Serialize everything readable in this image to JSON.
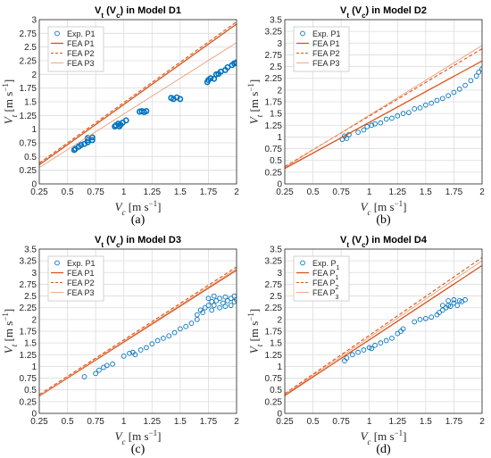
{
  "colors": {
    "marker": "#0072BD",
    "fea_p1": "#D95319",
    "fea_p2": "#D95319",
    "fea_p3": "#EDA07A",
    "grid": "#dcdcdc",
    "axis": "#262626"
  },
  "chart_data": [
    {
      "id": "a",
      "panel_label": "(a)",
      "type": "scatter",
      "title_parts": [
        "V",
        "t",
        " (V",
        "c",
        ") in Model D1"
      ],
      "xlabel_parts": [
        "V",
        "c",
        " [m s",
        "−1",
        "]"
      ],
      "ylabel_parts": [
        "V",
        "t",
        " [m s",
        "−1",
        "]"
      ],
      "xlim": [
        0.25,
        2
      ],
      "ylim": [
        0,
        3
      ],
      "xticks": [
        "0.25",
        "0.5",
        "0.75",
        "1",
        "1.25",
        "1.5",
        "1.75",
        "2"
      ],
      "yticks": [
        "0",
        "0.25",
        "0.5",
        "0.75",
        "1",
        "1.25",
        "1.5",
        "1.75",
        "2",
        "2.25",
        "2.5",
        "2.75",
        "3"
      ],
      "grid": true,
      "legend_position": "top-left",
      "legend": [
        {
          "label_parts": [
            "Exp. P1"
          ],
          "kind": "marker"
        },
        {
          "label_parts": [
            "FEA P1"
          ],
          "kind": "solid"
        },
        {
          "label_parts": [
            "FEA P2"
          ],
          "kind": "dashed"
        },
        {
          "label_parts": [
            "FEA P3"
          ],
          "kind": "thin"
        }
      ],
      "marker_style": "thick",
      "series": [
        {
          "name": "Exp. P1",
          "kind": "scatter",
          "x": [
            0.56,
            0.57,
            0.6,
            0.62,
            0.65,
            0.68,
            0.68,
            0.68,
            0.72,
            0.72,
            0.92,
            0.93,
            0.95,
            0.96,
            0.97,
            0.99,
            1.02,
            1.14,
            1.16,
            1.18,
            1.2,
            1.42,
            1.44,
            1.47,
            1.5,
            1.74,
            1.75,
            1.77,
            1.8,
            1.82,
            1.84,
            1.86,
            1.9,
            1.92,
            1.96,
            1.98,
            2.0
          ],
          "y": [
            0.62,
            0.64,
            0.68,
            0.71,
            0.73,
            0.76,
            0.8,
            0.84,
            0.8,
            0.85,
            1.05,
            1.07,
            1.1,
            1.05,
            1.08,
            1.12,
            1.16,
            1.32,
            1.33,
            1.31,
            1.33,
            1.57,
            1.55,
            1.58,
            1.55,
            1.86,
            1.9,
            1.93,
            1.92,
            2.0,
            2.01,
            2.05,
            2.08,
            2.13,
            2.17,
            2.2,
            2.22
          ]
        },
        {
          "name": "FEA P1",
          "kind": "solid",
          "x": [
            0.25,
            2
          ],
          "y": [
            0.35,
            2.92
          ]
        },
        {
          "name": "FEA P2",
          "kind": "dashed",
          "x": [
            0.25,
            2
          ],
          "y": [
            0.38,
            2.96
          ]
        },
        {
          "name": "FEA P3",
          "kind": "thin",
          "x": [
            0.25,
            2
          ],
          "y": [
            0.3,
            2.58
          ]
        }
      ]
    },
    {
      "id": "b",
      "panel_label": "(b)",
      "type": "scatter",
      "title_parts": [
        "V",
        "t",
        " (V",
        "c",
        ") in Model D2"
      ],
      "xlabel_parts": [
        "V",
        "c",
        " [m s",
        "−1",
        "]"
      ],
      "ylabel_parts": [
        "V",
        "t",
        " [m s",
        "−1",
        "]"
      ],
      "xlim": [
        0.25,
        2
      ],
      "ylim": [
        0,
        3.5
      ],
      "xticks": [
        "0.25",
        "0.5",
        "0.75",
        "1",
        "1.25",
        "1.5",
        "1.75",
        "2"
      ],
      "yticks": [
        "0",
        "0.25",
        "0.5",
        "0.75",
        "1",
        "1.25",
        "1.5",
        "1.75",
        "2",
        "2.25",
        "2.5",
        "2.75",
        "3",
        "3.25",
        "3.5"
      ],
      "grid": true,
      "legend_position": "top-left",
      "legend": [
        {
          "label_parts": [
            "Exp. P1"
          ],
          "kind": "marker"
        },
        {
          "label_parts": [
            "FEA P1"
          ],
          "kind": "solid"
        },
        {
          "label_parts": [
            "FEA P2"
          ],
          "kind": "dashed"
        },
        {
          "label_parts": [
            "FEA P3"
          ],
          "kind": "thin"
        }
      ],
      "marker_style": "thin",
      "series": [
        {
          "name": "Exp. P1",
          "kind": "scatter",
          "x": [
            0.76,
            0.78,
            0.8,
            0.82,
            0.9,
            0.95,
            0.98,
            1.02,
            1.05,
            1.1,
            1.15,
            1.2,
            1.25,
            1.3,
            1.35,
            1.4,
            1.45,
            1.5,
            1.55,
            1.6,
            1.65,
            1.7,
            1.75,
            1.8,
            1.85,
            1.9,
            1.95,
            1.97,
            2.0
          ],
          "y": [
            0.95,
            1.02,
            0.97,
            1.05,
            1.1,
            1.15,
            1.22,
            1.25,
            1.28,
            1.3,
            1.38,
            1.4,
            1.45,
            1.5,
            1.52,
            1.6,
            1.62,
            1.68,
            1.72,
            1.78,
            1.82,
            1.88,
            1.95,
            2.02,
            2.1,
            2.2,
            2.3,
            2.38,
            2.45
          ]
        },
        {
          "name": "FEA P1",
          "kind": "solid",
          "x": [
            0.25,
            2
          ],
          "y": [
            0.33,
            2.62
          ]
        },
        {
          "name": "FEA P2",
          "kind": "dashed",
          "x": [
            0.25,
            2
          ],
          "y": [
            0.37,
            2.88
          ]
        },
        {
          "name": "FEA P3",
          "kind": "thin",
          "x": [
            0.25,
            2
          ],
          "y": [
            0.35,
            2.95
          ]
        }
      ]
    },
    {
      "id": "c",
      "panel_label": "(c)",
      "type": "scatter",
      "title_parts": [
        "V",
        "t",
        " (V",
        "c",
        ") in Model D3"
      ],
      "xlabel_parts": [
        "V",
        "c",
        " [m s",
        "−1",
        "]"
      ],
      "ylabel_parts": [
        "V",
        "t",
        " [m s",
        "−1",
        "]"
      ],
      "xlim": [
        0.25,
        2
      ],
      "ylim": [
        0,
        3.5
      ],
      "xticks": [
        "0.25",
        "0.5",
        "0.75",
        "1",
        "1.25",
        "1.5",
        "1.75",
        "2"
      ],
      "yticks": [
        "0",
        "0.25",
        "0.5",
        "0.75",
        "1",
        "1.25",
        "1.5",
        "1.75",
        "2",
        "2.25",
        "2.5",
        "2.75",
        "3",
        "3.25",
        "3.5"
      ],
      "grid": true,
      "legend_position": "top-left",
      "legend": [
        {
          "label_parts": [
            "Exp. P1"
          ],
          "kind": "marker"
        },
        {
          "label_parts": [
            "FEA P1"
          ],
          "kind": "solid"
        },
        {
          "label_parts": [
            "FEA P2"
          ],
          "kind": "dashed"
        },
        {
          "label_parts": [
            "FEA P3"
          ],
          "kind": "thin"
        }
      ],
      "marker_style": "thin",
      "series": [
        {
          "name": "Exp. P1",
          "kind": "scatter",
          "x": [
            0.65,
            0.75,
            0.78,
            0.82,
            0.85,
            0.9,
            1.0,
            1.05,
            1.08,
            1.1,
            1.15,
            1.2,
            1.25,
            1.3,
            1.35,
            1.4,
            1.45,
            1.5,
            1.55,
            1.6,
            1.65,
            1.65,
            1.68,
            1.7,
            1.72,
            1.75,
            1.75,
            1.78,
            1.78,
            1.8,
            1.8,
            1.82,
            1.85,
            1.85,
            1.88,
            1.9,
            1.9,
            1.92,
            1.95,
            1.95,
            1.98,
            1.98,
            2.0
          ],
          "y": [
            0.78,
            0.85,
            0.92,
            0.98,
            1.02,
            1.05,
            1.22,
            1.28,
            1.3,
            1.25,
            1.35,
            1.4,
            1.48,
            1.55,
            1.6,
            1.65,
            1.72,
            1.8,
            1.85,
            1.92,
            2.0,
            2.1,
            2.2,
            2.15,
            2.25,
            2.3,
            2.45,
            2.2,
            2.38,
            2.3,
            2.5,
            2.4,
            2.25,
            2.45,
            2.35,
            2.28,
            2.48,
            2.4,
            2.3,
            2.45,
            2.38,
            2.5,
            2.42
          ]
        },
        {
          "name": "FEA P1",
          "kind": "solid",
          "x": [
            0.25,
            2
          ],
          "y": [
            0.37,
            3.05
          ]
        },
        {
          "name": "FEA P2",
          "kind": "dashed",
          "x": [
            0.25,
            2
          ],
          "y": [
            0.4,
            3.12
          ]
        },
        {
          "name": "FEA P3",
          "kind": "thin",
          "x": [
            0.25,
            2
          ],
          "y": [
            0.38,
            3.08
          ]
        }
      ]
    },
    {
      "id": "d",
      "panel_label": "(d)",
      "type": "scatter",
      "title_parts": [
        "V",
        "t",
        " (V",
        "c",
        ") in Model D4"
      ],
      "xlabel_parts": [
        "V",
        "c",
        " [m s",
        "−1",
        "]"
      ],
      "ylabel_parts": [
        "V",
        "t",
        " [m s",
        "−1",
        "]"
      ],
      "xlim": [
        0.25,
        2
      ],
      "ylim": [
        0,
        3.5
      ],
      "xticks": [
        "0.25",
        "0.5",
        "0.75",
        "1",
        "1.25",
        "1.5",
        "1.75",
        "2"
      ],
      "yticks": [
        "0",
        "0.25",
        "0.5",
        "0.75",
        "1",
        "1.25",
        "1.5",
        "1.75",
        "2",
        "2.25",
        "2.5",
        "2.75",
        "3",
        "3.25",
        "3.5"
      ],
      "grid": true,
      "legend_position": "top-left",
      "legend": [
        {
          "label_parts": [
            "Exp. P",
            "1"
          ],
          "kind": "marker"
        },
        {
          "label_parts": [
            "FEA P",
            "1"
          ],
          "kind": "solid"
        },
        {
          "label_parts": [
            "FEA P",
            "2"
          ],
          "kind": "dashed"
        },
        {
          "label_parts": [
            "FEA P",
            "3"
          ],
          "kind": "thin"
        }
      ],
      "marker_style": "thin",
      "series": [
        {
          "name": "Exp. P1",
          "kind": "scatter",
          "x": [
            0.78,
            0.8,
            0.85,
            0.9,
            0.95,
            1.0,
            1.02,
            1.05,
            1.1,
            1.15,
            1.2,
            1.25,
            1.28,
            1.3,
            1.4,
            1.45,
            1.5,
            1.55,
            1.6,
            1.62,
            1.65,
            1.65,
            1.68,
            1.7,
            1.7,
            1.72,
            1.75,
            1.75,
            1.78,
            1.8,
            1.82,
            1.85
          ],
          "y": [
            1.12,
            1.18,
            1.25,
            1.3,
            1.35,
            1.4,
            1.38,
            1.45,
            1.5,
            1.55,
            1.6,
            1.7,
            1.75,
            1.8,
            1.95,
            2.0,
            2.02,
            2.05,
            2.1,
            2.15,
            2.2,
            2.3,
            2.25,
            2.3,
            2.4,
            2.28,
            2.35,
            2.42,
            2.3,
            2.4,
            2.38,
            2.42
          ]
        },
        {
          "name": "FEA P1",
          "kind": "solid",
          "x": [
            0.25,
            2
          ],
          "y": [
            0.38,
            3.15
          ]
        },
        {
          "name": "FEA P2",
          "kind": "dashed",
          "x": [
            0.25,
            2
          ],
          "y": [
            0.42,
            3.32
          ]
        },
        {
          "name": "FEA P3",
          "kind": "thin",
          "x": [
            0.25,
            2
          ],
          "y": [
            0.4,
            3.25
          ]
        }
      ]
    }
  ]
}
